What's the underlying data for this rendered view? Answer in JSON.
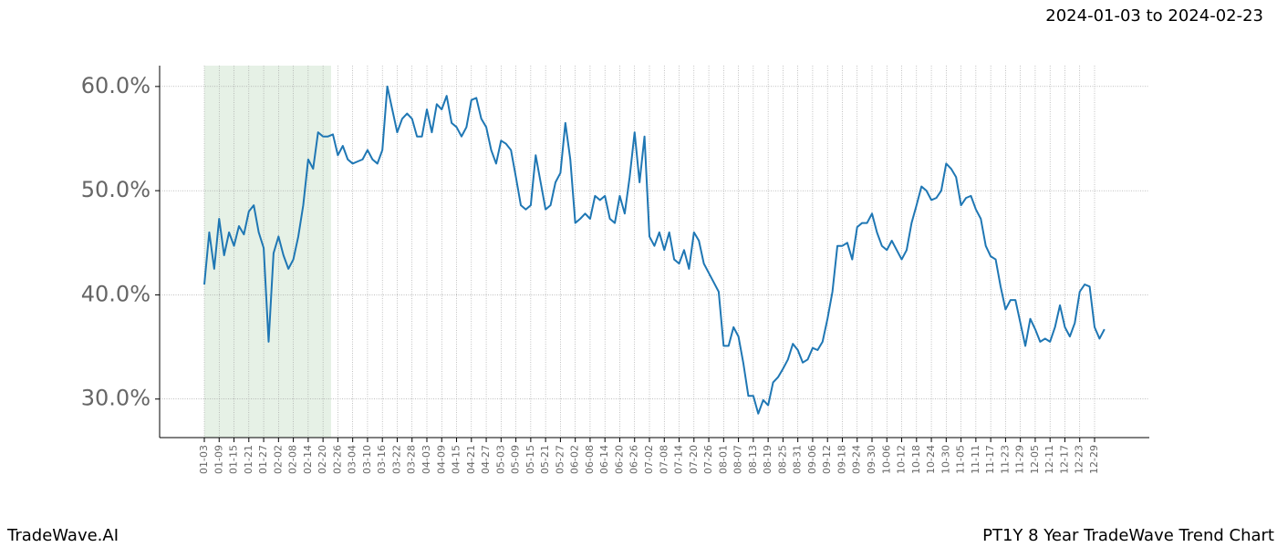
{
  "chart_data": {
    "type": "line",
    "date_range": "2024-01-03 to 2024-02-23",
    "footer_left": "TradeWave.AI",
    "footer_right": "PT1Y 8 Year TradeWave Trend Chart",
    "categories": [
      "01-03",
      null,
      null,
      "01-09",
      null,
      null,
      "01-15",
      null,
      null,
      "01-21",
      null,
      null,
      "01-27",
      null,
      null,
      "02-02",
      null,
      null,
      "02-08",
      null,
      null,
      "02-14",
      null,
      null,
      "02-20",
      null,
      null,
      "02-26",
      null,
      null,
      "03-04",
      null,
      null,
      "03-10",
      null,
      null,
      "03-16",
      null,
      null,
      "03-22",
      null,
      null,
      "03-28",
      null,
      null,
      "04-03",
      null,
      null,
      "04-09",
      null,
      null,
      "04-15",
      null,
      null,
      "04-21",
      null,
      null,
      "04-27",
      null,
      null,
      "05-03",
      null,
      null,
      "05-09",
      null,
      null,
      "05-15",
      null,
      null,
      "05-21",
      null,
      null,
      "05-27",
      null,
      null,
      "06-02",
      null,
      null,
      "06-08",
      null,
      null,
      "06-14",
      null,
      null,
      "06-20",
      null,
      null,
      "06-26",
      null,
      null,
      "07-02",
      null,
      null,
      "07-08",
      null,
      null,
      "07-14",
      null,
      null,
      "07-20",
      null,
      null,
      "07-26",
      null,
      null,
      "08-01",
      null,
      null,
      "08-07",
      null,
      null,
      "08-13",
      null,
      null,
      "08-19",
      null,
      null,
      "08-25",
      null,
      null,
      "08-31",
      null,
      null,
      "09-06",
      null,
      null,
      "09-12",
      null,
      null,
      "09-18",
      null,
      null,
      "09-24",
      null,
      null,
      "09-30",
      null,
      null,
      "10-06",
      null,
      null,
      "10-12",
      null,
      null,
      "10-18",
      null,
      null,
      "10-24",
      null,
      null,
      "10-30",
      null,
      null,
      "11-05",
      null,
      null,
      "11-11",
      null,
      null,
      "11-17",
      null,
      null,
      "11-23",
      null,
      null,
      "11-29",
      null,
      null,
      "12-05",
      null,
      null,
      "12-11",
      null,
      null,
      "12-17",
      null,
      null,
      "12-23",
      null,
      null,
      "12-29",
      null,
      null
    ],
    "series": [
      {
        "color": "#1f77b4",
        "values": [
          41.0,
          46.0,
          42.5,
          47.3,
          43.8,
          46.0,
          44.7,
          46.6,
          45.8,
          48.0,
          48.6,
          46.0,
          44.5,
          35.5,
          44.0,
          45.6,
          43.8,
          42.5,
          43.4,
          45.6,
          48.6,
          53.0,
          52.1,
          55.6,
          55.2,
          55.2,
          55.4,
          53.4,
          54.3,
          53.0,
          52.6,
          52.8,
          53.0,
          53.9,
          53.0,
          52.6,
          53.9,
          60.0,
          57.8,
          55.6,
          56.9,
          57.4,
          56.9,
          55.2,
          55.2,
          57.8,
          55.6,
          58.3,
          57.8,
          59.1,
          56.5,
          56.1,
          55.2,
          56.1,
          58.7,
          58.9,
          56.9,
          56.1,
          53.9,
          52.6,
          54.8,
          54.5,
          53.9,
          51.3,
          48.6,
          48.2,
          48.6,
          53.4,
          50.8,
          48.2,
          48.6,
          50.8,
          51.7,
          56.5,
          53.0,
          46.9,
          47.3,
          47.8,
          47.3,
          49.5,
          49.1,
          49.5,
          47.3,
          46.9,
          49.5,
          47.8,
          51.3,
          55.6,
          50.8,
          55.2,
          45.6,
          44.7,
          46.0,
          44.3,
          46.0,
          43.4,
          43.0,
          44.3,
          42.5,
          46.0,
          45.2,
          43.0,
          42.1,
          41.2,
          40.3,
          35.1,
          35.1,
          36.9,
          36.0,
          33.4,
          30.3,
          30.3,
          28.6,
          29.9,
          29.4,
          31.6,
          32.1,
          32.9,
          33.8,
          35.3,
          34.7,
          33.5,
          33.8,
          34.9,
          34.7,
          35.5,
          37.7,
          40.3,
          44.7,
          44.7,
          45.0,
          43.4,
          46.5,
          46.9,
          46.9,
          47.8,
          46.0,
          44.7,
          44.3,
          45.2,
          44.3,
          43.4,
          44.3,
          46.9,
          48.6,
          50.4,
          50.0,
          49.1,
          49.3,
          50.0,
          52.6,
          52.1,
          51.3,
          48.6,
          49.3,
          49.5,
          48.2,
          47.3,
          44.7,
          43.7,
          43.4,
          40.8,
          38.6,
          39.5,
          39.5,
          37.3,
          35.1,
          37.7,
          36.7,
          35.5,
          35.8,
          35.5,
          36.9,
          39.0,
          36.9,
          36.0,
          37.3,
          40.3,
          41.0,
          40.8,
          36.9,
          35.8,
          36.7
        ]
      }
    ],
    "ylim": [
      26.3,
      62.0
    ],
    "yticks": [
      {
        "value": 30,
        "label": "30.0%"
      },
      {
        "value": 40,
        "label": "40.0%"
      },
      {
        "value": 50,
        "label": "50.0%"
      },
      {
        "value": 60,
        "label": "60.0%"
      }
    ],
    "grid": true
  }
}
